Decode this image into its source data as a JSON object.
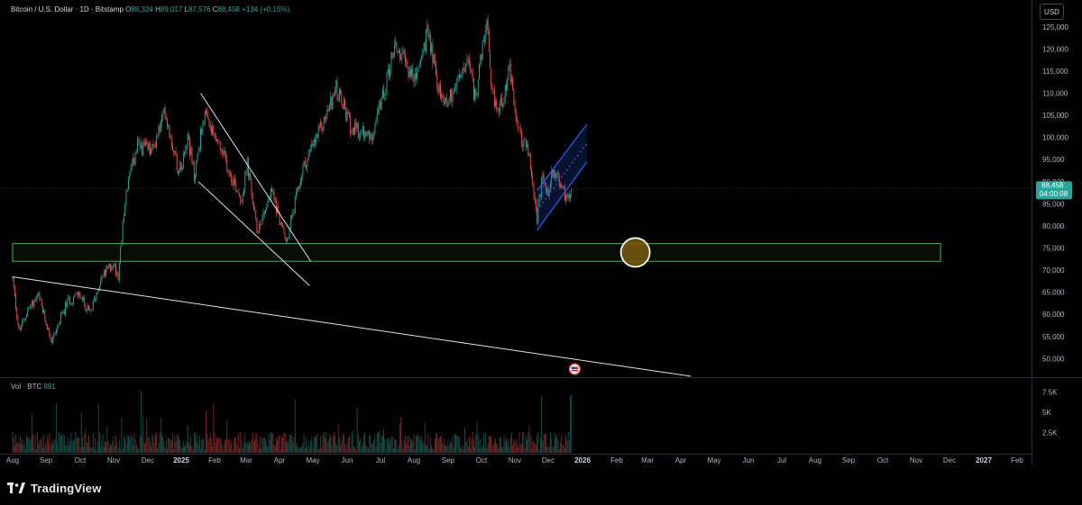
{
  "header": {
    "symbol": "Bitcoin / U.S. Dollar · 1D · Bitstamp",
    "open_label": "O",
    "open": "88,324",
    "high_label": "H",
    "high": "89,017",
    "low_label": "L",
    "low": "87,576",
    "close_label": "C",
    "close": "88,458",
    "change": "+134 (+0.15%)"
  },
  "currency": "USD",
  "volume": {
    "label": "Vol · BTC",
    "value": "891"
  },
  "price_tag": {
    "price": "88,458",
    "countdown": "04:00:08"
  },
  "brand": {
    "name": "TradingView",
    "logo_icon": "tradingview-logo-icon"
  },
  "colors": {
    "up": "#26a69a",
    "down": "#ef5350",
    "zone": "#4caf50",
    "channel": "#2962ff",
    "trendline": "#e0e3eb",
    "circle": "#f5f5f5",
    "circle_fill": "#7a5a10"
  },
  "chart_data": {
    "type": "candlestick",
    "title": "",
    "y_axis": {
      "labels": [
        "125,000",
        "120,000",
        "115,000",
        "110,000",
        "105,000",
        "100,000",
        "95,000",
        "90,000",
        "85,000",
        "80,000",
        "75,000",
        "70,000",
        "65,000",
        "60,000",
        "55,000",
        "50,000"
      ],
      "range": [
        46000,
        127000
      ]
    },
    "volume_axis": {
      "labels": [
        "7.5K",
        "5K",
        "2.5K"
      ],
      "range": [
        0,
        9000
      ]
    },
    "x_axis": {
      "labels": [
        "Aug",
        "Sep",
        "Oct",
        "Nov",
        "Dec",
        "2025",
        "Feb",
        "Mar",
        "Apr",
        "May",
        "Jun",
        "Jul",
        "Aug",
        "Sep",
        "Oct",
        "Nov",
        "Dec",
        "2026",
        "Feb",
        "Mar",
        "Apr",
        "May",
        "Jun",
        "Jul",
        "Aug",
        "Sep",
        "Oct",
        "Nov",
        "Dec",
        "2027",
        "Feb"
      ],
      "bold": [
        "2025",
        "2026",
        "2027"
      ]
    },
    "price_path": [
      [
        "2024-08-01",
        68000
      ],
      [
        "2024-08-07",
        56000
      ],
      [
        "2024-08-15",
        61000
      ],
      [
        "2024-08-25",
        64000
      ],
      [
        "2024-09-06",
        54000
      ],
      [
        "2024-09-20",
        63000
      ],
      [
        "2024-09-30",
        64500
      ],
      [
        "2024-10-10",
        60000
      ],
      [
        "2024-10-20",
        68000
      ],
      [
        "2024-10-31",
        71500
      ],
      [
        "2024-11-05",
        69000
      ],
      [
        "2024-11-12",
        88000
      ],
      [
        "2024-11-22",
        98000
      ],
      [
        "2024-12-05",
        97000
      ],
      [
        "2024-12-17",
        106000
      ],
      [
        "2024-12-30",
        92000
      ],
      [
        "2025-01-07",
        101000
      ],
      [
        "2025-01-13",
        91000
      ],
      [
        "2025-01-22",
        105000
      ],
      [
        "2025-02-05",
        98000
      ],
      [
        "2025-02-25",
        86000
      ],
      [
        "2025-03-02",
        94000
      ],
      [
        "2025-03-11",
        79000
      ],
      [
        "2025-03-25",
        88000
      ],
      [
        "2025-04-07",
        76000
      ],
      [
        "2025-04-22",
        93000
      ],
      [
        "2025-05-10",
        103000
      ],
      [
        "2025-05-22",
        111000
      ],
      [
        "2025-06-05",
        102000
      ],
      [
        "2025-06-22",
        100000
      ],
      [
        "2025-07-03",
        109000
      ],
      [
        "2025-07-14",
        121000
      ],
      [
        "2025-08-02",
        113000
      ],
      [
        "2025-08-14",
        124000
      ],
      [
        "2025-08-25",
        109000
      ],
      [
        "2025-09-01",
        108500
      ],
      [
        "2025-09-19",
        117000
      ],
      [
        "2025-09-25",
        109000
      ],
      [
        "2025-10-06",
        126000
      ],
      [
        "2025-10-10",
        110000
      ],
      [
        "2025-10-17",
        106000
      ],
      [
        "2025-10-27",
        115000
      ],
      [
        "2025-11-04",
        101000
      ],
      [
        "2025-11-13",
        97000
      ],
      [
        "2025-11-21",
        82000
      ],
      [
        "2025-11-26",
        91000
      ],
      [
        "2025-12-01",
        86000
      ],
      [
        "2025-12-04",
        93000
      ],
      [
        "2025-12-11",
        90000
      ],
      [
        "2025-12-17",
        86500
      ],
      [
        "2025-12-22",
        88458
      ]
    ],
    "zone": {
      "low": 72000,
      "high": 76000,
      "from": "2024-08-01",
      "to": "2026-11-23"
    },
    "circle_marker": {
      "date": "2026-02-18",
      "price": 74000
    },
    "trendlines": [
      {
        "from": [
          "2024-08-01",
          68500
        ],
        "to": [
          "2026-04-10",
          46000
        ]
      },
      {
        "from": [
          "2025-01-19",
          110000
        ],
        "to": [
          "2025-04-29",
          72000
        ]
      },
      {
        "from": [
          "2025-01-17",
          90000
        ],
        "to": [
          "2025-04-28",
          66500
        ]
      }
    ],
    "channel": {
      "lower": [
        [
          "2025-11-21",
          79000
        ],
        [
          "2026-01-05",
          94500
        ]
      ],
      "upper": [
        [
          "2025-11-21",
          88000
        ],
        [
          "2026-01-05",
          103000
        ]
      ]
    },
    "events": [
      {
        "date": "2025-12-25",
        "icon": "us-flag-event-icon"
      }
    ]
  }
}
